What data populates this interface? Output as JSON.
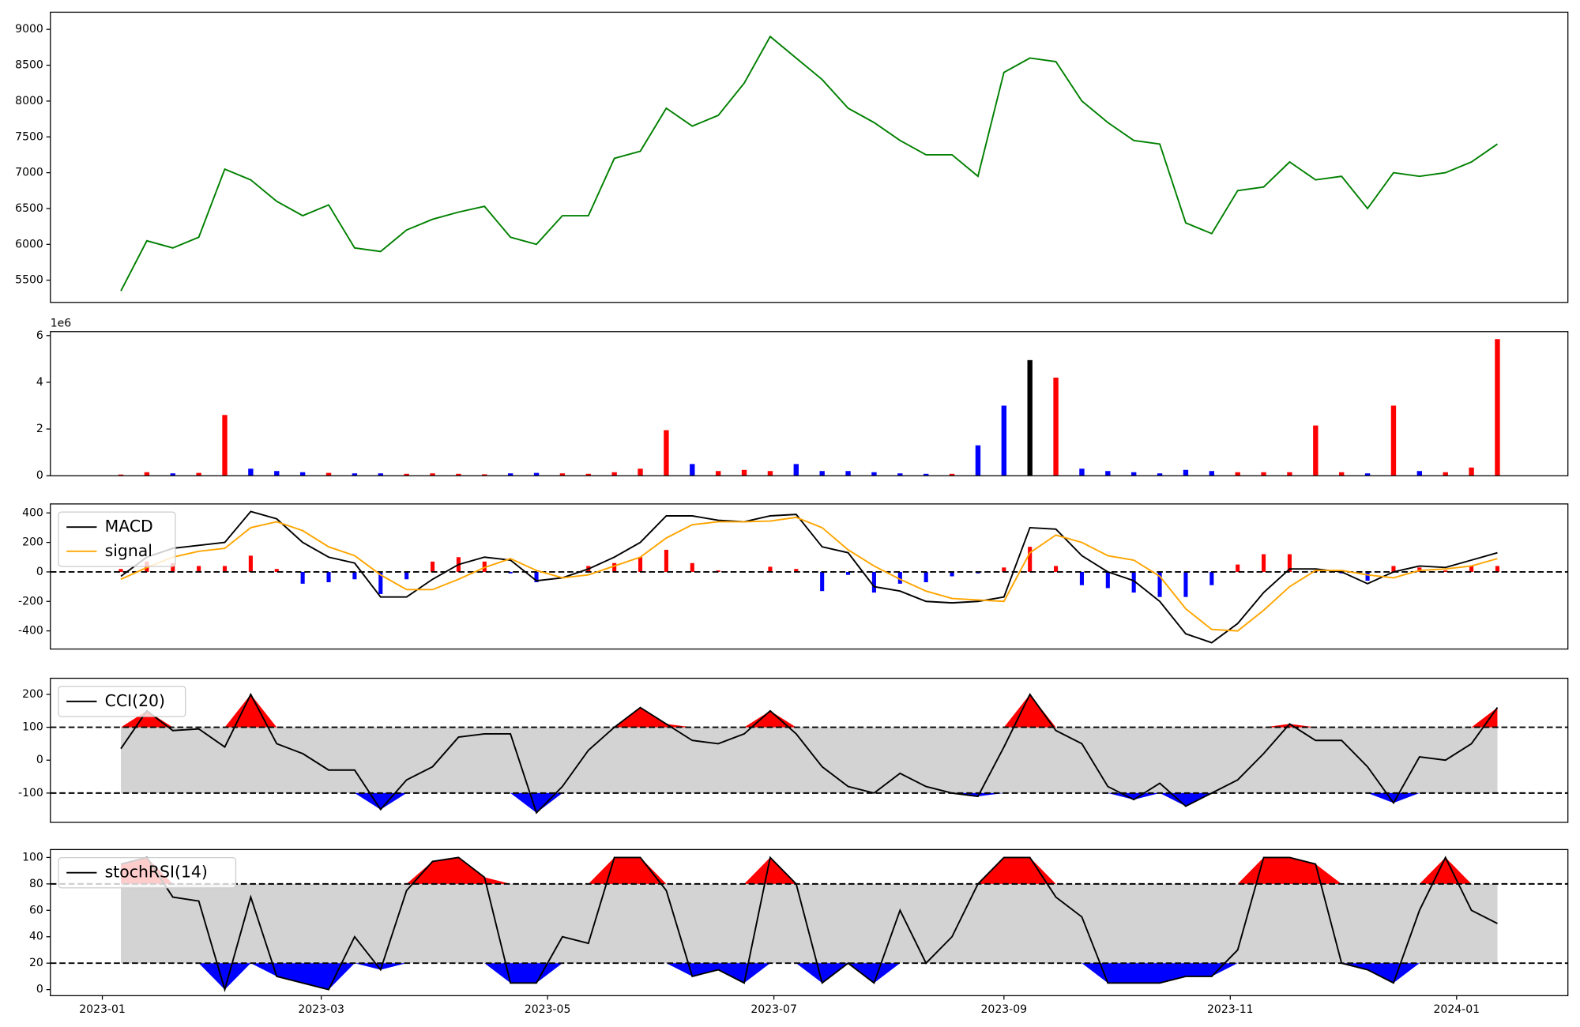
{
  "chart_data": [
    {
      "type": "line",
      "series": [
        {
          "color": "green",
          "values": [
            5350,
            6050,
            5950,
            6100,
            7050,
            6900,
            6600,
            6400,
            6550,
            5950,
            5900,
            6200,
            6350,
            6450,
            6530,
            6100,
            6000,
            6400,
            6400,
            7200,
            7300,
            7900,
            7650,
            7800,
            8250,
            8900,
            8600,
            8300,
            7900,
            7700,
            7450,
            7250,
            7250,
            6950,
            8400,
            8600,
            8550,
            8000,
            7700,
            7450,
            7400,
            6300,
            6150,
            6750,
            6800,
            7150,
            6900,
            6950,
            6500,
            7000,
            6950,
            7000,
            7150,
            7400
          ]
        }
      ],
      "ylim": [
        5190,
        9240
      ],
      "yticks": [
        5500,
        6000,
        6500,
        7000,
        7500,
        8000,
        8500,
        9000
      ]
    },
    {
      "type": "bar",
      "values": [
        50000,
        150000,
        100000,
        120000,
        2600000,
        300000,
        200000,
        150000,
        120000,
        100000,
        100000,
        80000,
        100000,
        80000,
        60000,
        100000,
        120000,
        100000,
        80000,
        150000,
        300000,
        1950000,
        500000,
        200000,
        250000,
        200000,
        500000,
        200000,
        200000,
        150000,
        100000,
        80000,
        80000,
        1300000,
        3000000,
        4950000,
        4200000,
        300000,
        200000,
        150000,
        100000,
        250000,
        200000,
        150000,
        150000,
        150000,
        2150000,
        150000,
        100000,
        3000000,
        200000,
        150000,
        350000,
        5850000
      ],
      "colors": [
        "red",
        "red",
        "blue",
        "red",
        "red",
        "blue",
        "blue",
        "blue",
        "red",
        "blue",
        "blue",
        "red",
        "red",
        "red",
        "red",
        "blue",
        "blue",
        "red",
        "red",
        "red",
        "red",
        "red",
        "blue",
        "red",
        "red",
        "red",
        "blue",
        "blue",
        "blue",
        "blue",
        "blue",
        "blue",
        "red",
        "blue",
        "blue",
        "black",
        "red",
        "blue",
        "blue",
        "blue",
        "blue",
        "blue",
        "blue",
        "red",
        "red",
        "red",
        "red",
        "red",
        "blue",
        "red",
        "blue",
        "red",
        "red",
        "red"
      ],
      "ylim": [
        0,
        6170000
      ],
      "yticks": [
        0,
        {
          "value": 2000000,
          "label": "2"
        },
        {
          "value": 4000000,
          "label": "4"
        },
        {
          "value": 6000000,
          "label": "6"
        }
      ],
      "offset_label": "1e6"
    },
    {
      "type": "macd",
      "series": [
        {
          "name": "MACD",
          "color": "black",
          "values": [
            -30,
            100,
            160,
            180,
            200,
            410,
            360,
            200,
            100,
            60,
            -170,
            -170,
            -50,
            50,
            100,
            80,
            -60,
            -40,
            20,
            100,
            200,
            380,
            380,
            350,
            340,
            380,
            390,
            170,
            130,
            -100,
            -130,
            -200,
            -210,
            -200,
            -170,
            300,
            290,
            110,
            0,
            -60,
            -200,
            -420,
            -480,
            -350,
            -140,
            20,
            20,
            0,
            -80,
            0,
            40,
            30,
            80,
            130
          ]
        },
        {
          "name": "signal",
          "color": "orange",
          "values": [
            -50,
            30,
            100,
            140,
            160,
            300,
            340,
            280,
            170,
            110,
            -20,
            -120,
            -120,
            -50,
            30,
            90,
            10,
            -40,
            -20,
            40,
            100,
            230,
            320,
            340,
            340,
            345,
            370,
            300,
            150,
            40,
            -50,
            -130,
            -180,
            -190,
            -200,
            130,
            250,
            200,
            110,
            80,
            -30,
            -250,
            -390,
            -400,
            -260,
            -100,
            10,
            10,
            -20,
            -40,
            10,
            20,
            40,
            90
          ]
        }
      ],
      "histogram": {
        "values": [
          20,
          70,
          60,
          40,
          40,
          110,
          20,
          -80,
          -70,
          -50,
          -150,
          -50,
          70,
          100,
          70,
          -10,
          -70,
          0,
          40,
          60,
          100,
          150,
          60,
          10,
          0,
          35,
          20,
          -130,
          -20,
          -140,
          -80,
          -70,
          -30,
          -10,
          30,
          170,
          40,
          -90,
          -110,
          -140,
          -170,
          -170,
          -90,
          50,
          120,
          120,
          10,
          -10,
          -60,
          40,
          30,
          10,
          40,
          40
        ],
        "positive_color": "red",
        "negative_color": "blue"
      },
      "reference_line": 0,
      "legend": "upper left",
      "ylim": [
        -523,
        461
      ],
      "yticks": [
        -400,
        -200,
        0,
        200,
        400
      ]
    },
    {
      "type": "band",
      "series": [
        {
          "name": "CCI(20)",
          "color": "black",
          "values": [
            35,
            150,
            90,
            95,
            40,
            200,
            50,
            20,
            -30,
            -30,
            -150,
            -60,
            -20,
            70,
            80,
            80,
            -160,
            -80,
            30,
            100,
            160,
            110,
            60,
            50,
            80,
            150,
            80,
            -20,
            -80,
            -100,
            -40,
            -80,
            -100,
            -110,
            40,
            200,
            90,
            50,
            -80,
            -120,
            -70,
            -140,
            -100,
            -60,
            20,
            110,
            60,
            60,
            -20,
            -130,
            10,
            0,
            50,
            160
          ]
        }
      ],
      "upper": 100,
      "lower": -100,
      "above_color": "red",
      "below_color": "blue",
      "band_color": "lightgray",
      "legend": "upper left",
      "ylim": [
        -189,
        249
      ],
      "yticks": [
        -100,
        0,
        100,
        200
      ]
    },
    {
      "type": "band",
      "series": [
        {
          "name": "stochRSI(14)",
          "color": "black",
          "values": [
            95,
            100,
            70,
            67,
            0,
            70,
            10,
            5,
            0,
            40,
            15,
            75,
            97,
            100,
            85,
            5,
            5,
            40,
            35,
            100,
            100,
            75,
            10,
            15,
            5,
            100,
            80,
            5,
            20,
            5,
            60,
            20,
            40,
            80,
            100,
            100,
            70,
            55,
            5,
            5,
            5,
            10,
            10,
            30,
            100,
            100,
            95,
            20,
            15,
            5,
            60,
            100,
            60,
            50
          ]
        }
      ],
      "upper": 80,
      "lower": 20,
      "above_color": "red",
      "below_color": "blue",
      "band_color": "lightgray",
      "legend": "upper left",
      "ylim": [
        -4.6,
        106
      ],
      "yticks": [
        0,
        20,
        40,
        60,
        80,
        100
      ],
      "x": [
        "2023-01-06",
        "2023-01-13",
        "2023-01-20",
        "2023-01-27",
        "2023-02-03",
        "2023-02-10",
        "2023-02-17",
        "2023-02-24",
        "2023-03-03",
        "2023-03-10",
        "2023-03-17",
        "2023-03-24",
        "2023-03-31",
        "2023-04-07",
        "2023-04-14",
        "2023-04-21",
        "2023-04-28",
        "2023-05-05",
        "2023-05-12",
        "2023-05-19",
        "2023-05-26",
        "2023-06-02",
        "2023-06-09",
        "2023-06-16",
        "2023-06-23",
        "2023-06-30",
        "2023-07-07",
        "2023-07-14",
        "2023-07-21",
        "2023-07-28",
        "2023-08-04",
        "2023-08-11",
        "2023-08-18",
        "2023-08-25",
        "2023-09-01",
        "2023-09-08",
        "2023-09-15",
        "2023-09-22",
        "2023-09-29",
        "2023-10-06",
        "2023-10-13",
        "2023-10-20",
        "2023-10-27",
        "2023-11-03",
        "2023-11-10",
        "2023-11-17",
        "2023-11-24",
        "2023-12-01",
        "2023-12-08",
        "2023-12-15",
        "2023-12-22",
        "2023-12-29",
        "2024-01-05",
        "2024-01-12"
      ],
      "xlim": [
        "2022-12-18",
        "2024-01-31"
      ],
      "xticks": [
        {
          "value": "2023-01-01",
          "label": "2023-01"
        },
        {
          "value": "2023-03-01",
          "label": "2023-03"
        },
        {
          "value": "2023-05-01",
          "label": "2023-05"
        },
        {
          "value": "2023-07-01",
          "label": "2023-07"
        },
        {
          "value": "2023-09-01",
          "label": "2023-09"
        },
        {
          "value": "2023-11-01",
          "label": "2023-11"
        },
        {
          "value": "2024-01-01",
          "label": "2024-01"
        }
      ]
    }
  ]
}
